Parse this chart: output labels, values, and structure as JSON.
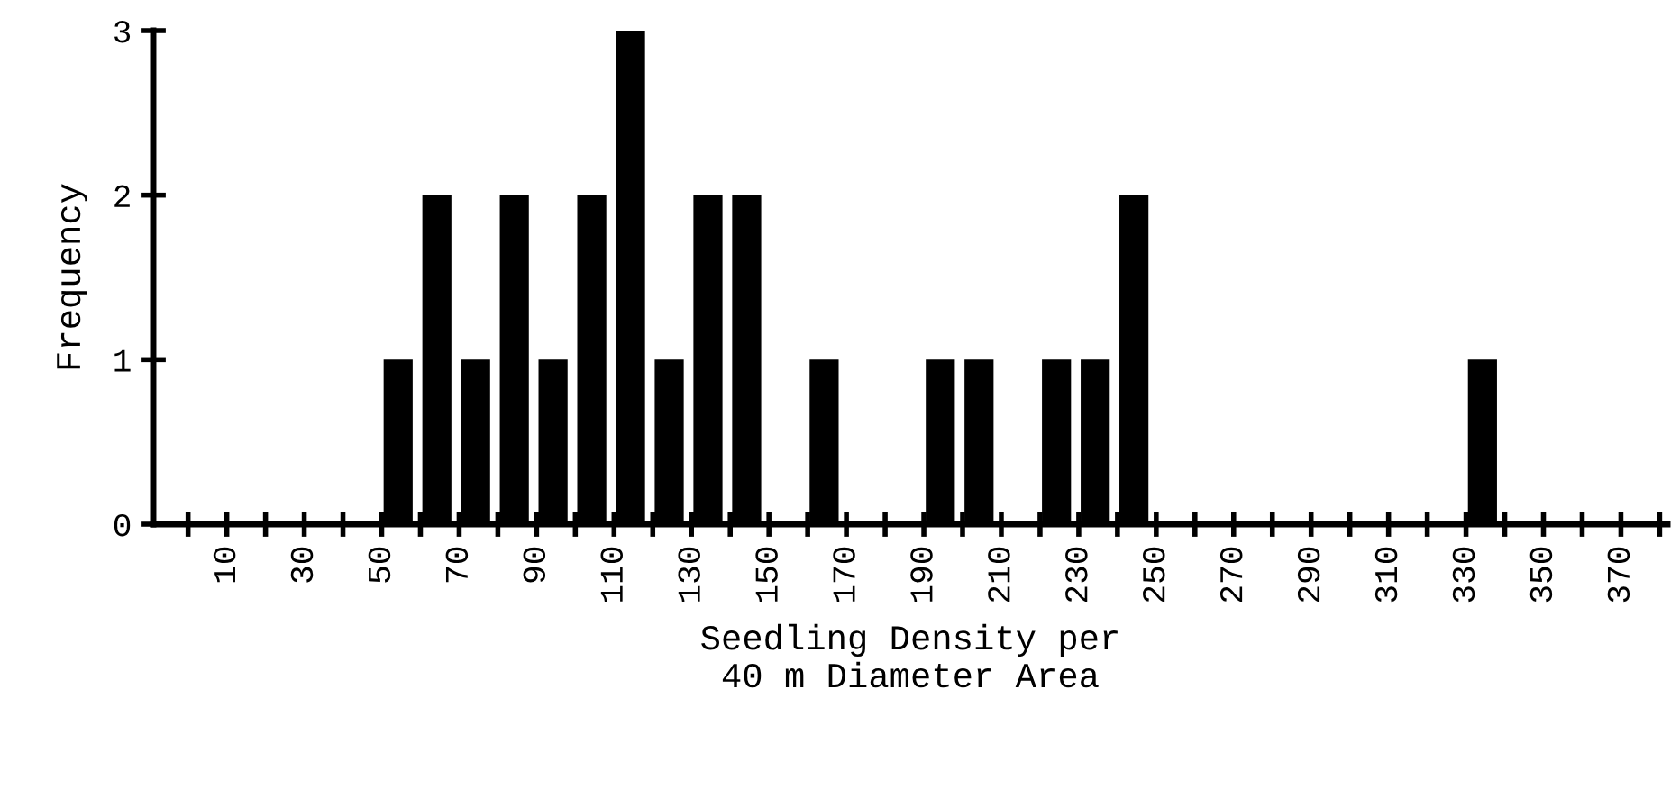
{
  "chart_data": {
    "type": "histogram",
    "xlabel": "Seedling Density per\n40 m Diameter Area",
    "ylabel": "Frequency",
    "bins": [
      0,
      10,
      20,
      30,
      40,
      50,
      60,
      70,
      80,
      90,
      100,
      110,
      120,
      130,
      140,
      150,
      160,
      170,
      180,
      190,
      200,
      210,
      220,
      230,
      240,
      250,
      260,
      270,
      280,
      290,
      300,
      310,
      320,
      330,
      340,
      350,
      360,
      370,
      380
    ],
    "values": [
      0,
      0,
      0,
      0,
      0,
      1,
      2,
      1,
      2,
      1,
      2,
      3,
      1,
      2,
      2,
      0,
      1,
      0,
      0,
      1,
      1,
      0,
      1,
      1,
      2,
      0,
      0,
      0,
      0,
      0,
      0,
      0,
      0,
      1,
      0,
      0,
      0,
      0
    ],
    "color": "#000000",
    "xlim": [
      -9,
      382
    ],
    "ylim": [
      0,
      3
    ],
    "xticks": [
      {
        "value": 0,
        "label": null
      },
      10,
      {
        "value": 20,
        "label": null
      },
      30,
      {
        "value": 40,
        "label": null
      },
      50,
      {
        "value": 60,
        "label": null
      },
      70,
      {
        "value": 80,
        "label": null
      },
      90,
      {
        "value": 100,
        "label": null
      },
      110,
      {
        "value": 120,
        "label": null
      },
      130,
      {
        "value": 140,
        "label": null
      },
      150,
      {
        "value": 160,
        "label": null
      },
      170,
      {
        "value": 180,
        "label": null
      },
      190,
      {
        "value": 200,
        "label": null
      },
      210,
      {
        "value": 220,
        "label": null
      },
      230,
      {
        "value": 240,
        "label": null
      },
      250,
      {
        "value": 260,
        "label": null
      },
      270,
      {
        "value": 280,
        "label": null
      },
      290,
      {
        "value": 300,
        "label": null
      },
      310,
      {
        "value": 320,
        "label": null
      },
      330,
      {
        "value": 340,
        "label": null
      },
      350,
      {
        "value": 360,
        "label": null
      },
      370,
      {
        "value": 380,
        "label": null
      }
    ],
    "yticks": [
      0,
      1,
      2,
      3
    ],
    "grid": false
  }
}
